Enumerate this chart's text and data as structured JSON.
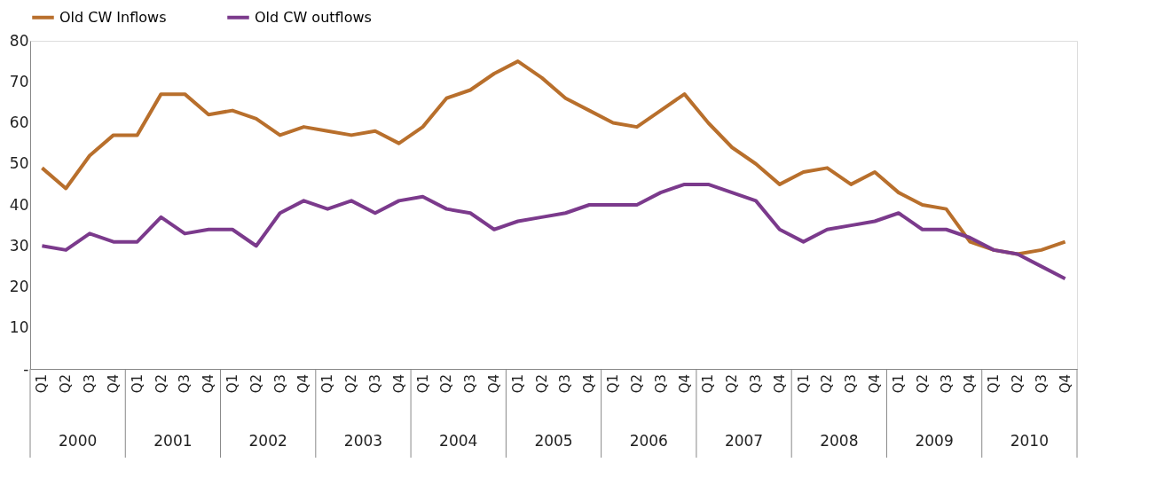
{
  "chart_data": {
    "type": "line",
    "categories": [
      "Q1",
      "Q2",
      "Q3",
      "Q4",
      "Q1",
      "Q2",
      "Q3",
      "Q4",
      "Q1",
      "Q2",
      "Q3",
      "Q4",
      "Q1",
      "Q2",
      "Q3",
      "Q4",
      "Q1",
      "Q2",
      "Q3",
      "Q4",
      "Q1",
      "Q2",
      "Q3",
      "Q4",
      "Q1",
      "Q2",
      "Q3",
      "Q4",
      "Q1",
      "Q2",
      "Q3",
      "Q4",
      "Q1",
      "Q2",
      "Q3",
      "Q4",
      "Q1",
      "Q2",
      "Q3",
      "Q4",
      "Q1",
      "Q2",
      "Q3",
      "Q4"
    ],
    "annotations": [
      "2000",
      "2001",
      "2002",
      "2003",
      "2004",
      "2005",
      "2006",
      "2007",
      "2008",
      "2009",
      "2010"
    ],
    "series": [
      {
        "name": "Old CW Inflows",
        "color": "#b86f2c",
        "values": [
          49,
          44,
          52,
          57,
          57,
          67,
          67,
          62,
          63,
          61,
          57,
          59,
          58,
          57,
          58,
          55,
          59,
          66,
          68,
          72,
          75,
          71,
          66,
          63,
          60,
          59,
          63,
          67,
          60,
          54,
          50,
          45,
          48,
          49,
          45,
          48,
          43,
          40,
          39,
          31,
          29,
          28,
          29,
          31
        ]
      },
      {
        "name": "Old CW outflows",
        "color": "#7b3a8c",
        "values": [
          30,
          29,
          33,
          31,
          31,
          37,
          33,
          34,
          34,
          30,
          38,
          41,
          39,
          41,
          38,
          41,
          42,
          39,
          38,
          34,
          36,
          37,
          38,
          40,
          40,
          40,
          43,
          45,
          45,
          43,
          41,
          34,
          31,
          34,
          35,
          36,
          38,
          34,
          34,
          32,
          29,
          28,
          25,
          22
        ]
      }
    ],
    "ylim": [
      0,
      80
    ],
    "yticks": [
      {
        "value": 0,
        "label": "-"
      },
      10,
      20,
      30,
      40,
      50,
      60,
      70,
      80
    ],
    "grid": false,
    "legend": "top",
    "marker": "none",
    "line_style": "solid"
  }
}
